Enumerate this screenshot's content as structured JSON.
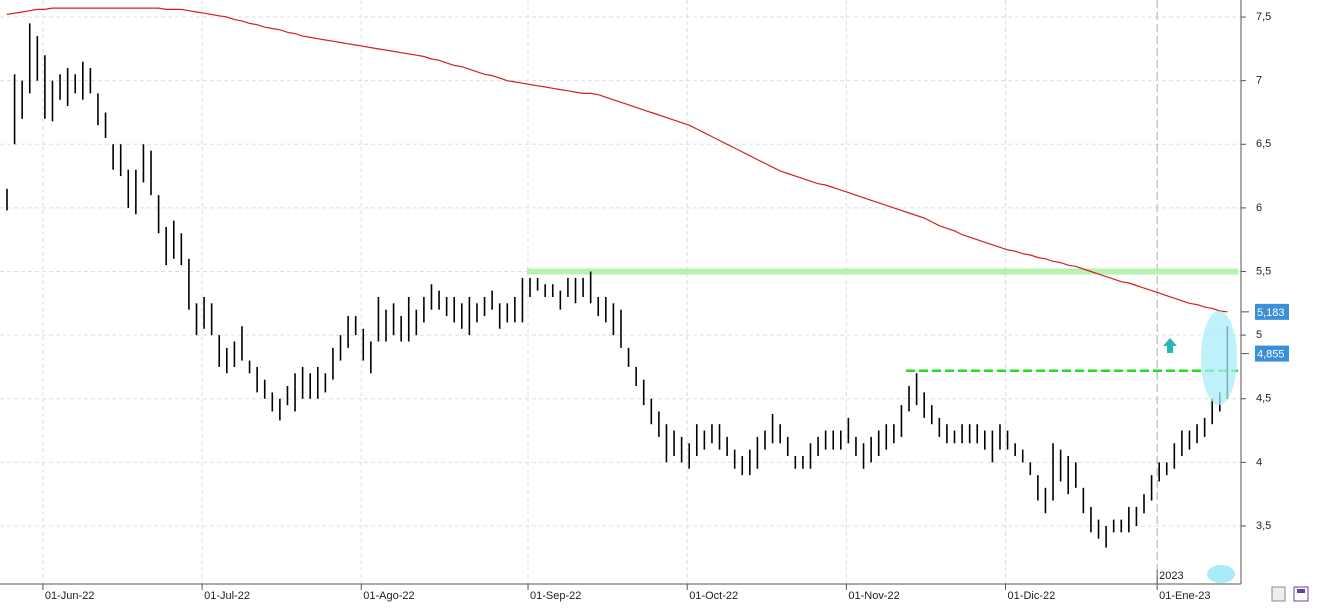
{
  "chart_data": {
    "type": "ohlc",
    "categories": [
      null,
      null,
      null,
      null,
      null,
      "01-Jun-22",
      null,
      null,
      null,
      null,
      null,
      null,
      null,
      null,
      null,
      null,
      null,
      null,
      null,
      null,
      null,
      null,
      null,
      null,
      null,
      null,
      "01-Jul-22",
      null,
      null,
      null,
      null,
      null,
      null,
      null,
      null,
      null,
      null,
      null,
      null,
      null,
      null,
      null,
      null,
      null,
      null,
      null,
      null,
      "01-Ago-22",
      null,
      null,
      null,
      null,
      null,
      null,
      null,
      null,
      null,
      null,
      null,
      null,
      null,
      null,
      null,
      null,
      null,
      null,
      null,
      null,
      null,
      "01-Sep-22",
      null,
      null,
      null,
      null,
      null,
      null,
      null,
      null,
      null,
      null,
      null,
      null,
      null,
      null,
      null,
      null,
      null,
      null,
      null,
      null,
      "01-Oct-22",
      null,
      null,
      null,
      null,
      null,
      null,
      null,
      null,
      null,
      null,
      null,
      null,
      null,
      null,
      null,
      null,
      null,
      null,
      null,
      null,
      "01-Nov-22",
      null,
      null,
      null,
      null,
      null,
      null,
      null,
      null,
      null,
      null,
      null,
      null,
      null,
      null,
      null,
      null,
      null,
      null,
      null,
      null,
      "01-Dic-22",
      null,
      null,
      null,
      null,
      null,
      null,
      null,
      null,
      null,
      null,
      null,
      null,
      null,
      null,
      null,
      null,
      null,
      null,
      null,
      "01-Ene-23",
      null,
      null,
      null,
      null,
      null,
      null,
      null,
      null,
      null
    ],
    "high": [
      6.15,
      7.05,
      7.0,
      7.45,
      7.35,
      7.2,
      7.0,
      7.05,
      7.1,
      7.05,
      7.15,
      7.1,
      6.9,
      6.75,
      6.5,
      6.5,
      6.3,
      6.3,
      6.5,
      6.45,
      6.1,
      5.85,
      5.9,
      5.8,
      5.6,
      5.25,
      5.3,
      5.25,
      5.0,
      4.9,
      4.95,
      5.07,
      4.8,
      4.75,
      4.65,
      4.55,
      4.5,
      4.6,
      4.7,
      4.75,
      4.7,
      4.75,
      4.7,
      4.9,
      5.0,
      5.15,
      5.15,
      5.05,
      4.95,
      5.3,
      5.2,
      5.25,
      5.15,
      5.3,
      5.2,
      5.3,
      5.4,
      5.35,
      5.3,
      5.3,
      5.25,
      5.3,
      5.25,
      5.3,
      5.35,
      5.25,
      5.25,
      5.3,
      5.45,
      5.45,
      5.45,
      5.4,
      5.4,
      5.35,
      5.45,
      5.45,
      5.45,
      5.5,
      5.3,
      5.3,
      5.25,
      5.2,
      4.9,
      4.75,
      4.65,
      4.5,
      4.4,
      4.3,
      4.25,
      4.2,
      4.15,
      4.3,
      4.25,
      4.3,
      4.3,
      4.2,
      4.1,
      4.05,
      4.1,
      4.2,
      4.25,
      4.38,
      4.3,
      4.2,
      4.05,
      4.05,
      4.15,
      4.2,
      4.25,
      4.25,
      4.25,
      4.35,
      4.2,
      4.15,
      4.2,
      4.25,
      4.3,
      4.3,
      4.45,
      4.6,
      4.7,
      4.55,
      4.45,
      4.35,
      4.3,
      4.25,
      4.3,
      4.3,
      4.3,
      4.25,
      4.25,
      4.3,
      4.25,
      4.15,
      4.1,
      4.0,
      3.9,
      3.8,
      4.15,
      4.1,
      4.05,
      4.0,
      3.8,
      3.65,
      3.55,
      3.5,
      3.55,
      3.55,
      3.65,
      3.65,
      3.75,
      3.9,
      4.0,
      4.0,
      4.15,
      4.25,
      4.25,
      4.3,
      4.35,
      4.5,
      4.55,
      5.07
    ],
    "low": [
      5.98,
      6.5,
      6.7,
      6.9,
      7.0,
      6.7,
      6.68,
      6.85,
      6.8,
      6.9,
      6.85,
      6.9,
      6.65,
      6.55,
      6.3,
      6.25,
      6.0,
      5.95,
      6.2,
      6.1,
      5.8,
      5.55,
      5.6,
      5.55,
      5.2,
      5.0,
      5.05,
      5.0,
      4.75,
      4.7,
      4.75,
      4.8,
      4.7,
      4.55,
      4.5,
      4.4,
      4.33,
      4.45,
      4.4,
      4.5,
      4.5,
      4.5,
      4.55,
      4.65,
      4.8,
      4.9,
      5.0,
      4.8,
      4.7,
      4.95,
      4.95,
      5.0,
      4.95,
      4.95,
      5.0,
      5.1,
      5.2,
      5.2,
      5.15,
      5.1,
      5.05,
      5.0,
      5.1,
      5.15,
      5.2,
      5.05,
      5.1,
      5.1,
      5.1,
      5.3,
      5.35,
      5.3,
      5.3,
      5.2,
      5.3,
      5.25,
      5.3,
      5.25,
      5.15,
      5.1,
      5.0,
      4.9,
      4.75,
      4.6,
      4.45,
      4.3,
      4.2,
      4.0,
      4.05,
      4.0,
      3.95,
      4.05,
      4.1,
      4.15,
      4.1,
      4.05,
      3.95,
      3.9,
      3.9,
      3.95,
      4.1,
      4.15,
      4.15,
      4.05,
      3.95,
      3.95,
      3.95,
      4.05,
      4.1,
      4.1,
      4.1,
      4.15,
      4.05,
      3.95,
      4.0,
      4.05,
      4.1,
      4.15,
      4.2,
      4.4,
      4.45,
      4.35,
      4.3,
      4.2,
      4.15,
      4.15,
      4.15,
      4.15,
      4.15,
      4.1,
      4.0,
      4.1,
      4.1,
      4.05,
      4.0,
      3.9,
      3.7,
      3.6,
      3.7,
      3.85,
      3.75,
      3.8,
      3.6,
      3.45,
      3.4,
      3.33,
      3.45,
      3.45,
      3.45,
      3.5,
      3.6,
      3.7,
      3.85,
      3.9,
      3.95,
      4.05,
      4.1,
      4.15,
      4.2,
      4.3,
      4.4,
      4.5
    ],
    "color": "#000000",
    "moving_average": {
      "color": "#d42020",
      "values": [
        7.52,
        7.53,
        7.54,
        7.55,
        7.56,
        7.56,
        7.57,
        7.57,
        7.57,
        7.57,
        7.57,
        7.57,
        7.57,
        7.57,
        7.57,
        7.57,
        7.57,
        7.57,
        7.57,
        7.57,
        7.57,
        7.56,
        7.56,
        7.56,
        7.55,
        7.54,
        7.53,
        7.52,
        7.51,
        7.5,
        7.48,
        7.47,
        7.45,
        7.44,
        7.42,
        7.41,
        7.4,
        7.38,
        7.37,
        7.35,
        7.34,
        7.33,
        7.32,
        7.31,
        7.3,
        7.29,
        7.28,
        7.27,
        7.26,
        7.25,
        7.24,
        7.23,
        7.22,
        7.21,
        7.2,
        7.19,
        7.17,
        7.16,
        7.14,
        7.12,
        7.11,
        7.09,
        7.07,
        7.05,
        7.04,
        7.02,
        7.0,
        6.99,
        6.98,
        6.97,
        6.96,
        6.95,
        6.94,
        6.93,
        6.92,
        6.91,
        6.9,
        6.9,
        6.89,
        6.87,
        6.85,
        6.83,
        6.81,
        6.79,
        6.77,
        6.75,
        6.73,
        6.71,
        6.69,
        6.67,
        6.65,
        6.62,
        6.59,
        6.56,
        6.53,
        6.5,
        6.47,
        6.44,
        6.41,
        6.38,
        6.35,
        6.32,
        6.29,
        6.27,
        6.25,
        6.23,
        6.21,
        6.19,
        6.18,
        6.16,
        6.14,
        6.12,
        6.1,
        6.08,
        6.06,
        6.04,
        6.02,
        6.0,
        5.98,
        5.96,
        5.94,
        5.92,
        5.89,
        5.86,
        5.84,
        5.82,
        5.79,
        5.77,
        5.75,
        5.73,
        5.71,
        5.69,
        5.67,
        5.66,
        5.64,
        5.63,
        5.61,
        5.6,
        5.58,
        5.57,
        5.55,
        5.54,
        5.52,
        5.5,
        5.48,
        5.46,
        5.44,
        5.42,
        5.41,
        5.39,
        5.37,
        5.35,
        5.33,
        5.31,
        5.29,
        5.27,
        5.25,
        5.24,
        5.22,
        5.21,
        5.19,
        5.183
      ]
    },
    "levels": [
      {
        "value": 5.5,
        "color": "#b6f2b0",
        "style": "solid"
      },
      {
        "value": 4.72,
        "color": "#22dd22",
        "style": "dashed"
      }
    ],
    "last_labels": [
      {
        "value": 5.183,
        "label": "5,183",
        "color": "#3a8fd9"
      },
      {
        "value": 4.855,
        "label": "4,855",
        "color": "#3a8fd9"
      }
    ],
    "year_label": "2023",
    "ylim": [
      3.044,
      7.634
    ],
    "yticks": [
      {
        "value": 3.5,
        "label": "3,5"
      },
      4,
      {
        "value": 4.5,
        "label": "4,5"
      },
      5,
      {
        "value": 5.5,
        "label": "5,5"
      },
      6,
      {
        "value": 6.5,
        "label": "6,5"
      },
      7,
      {
        "value": 7.5,
        "label": "7,5"
      }
    ],
    "grid": true
  }
}
